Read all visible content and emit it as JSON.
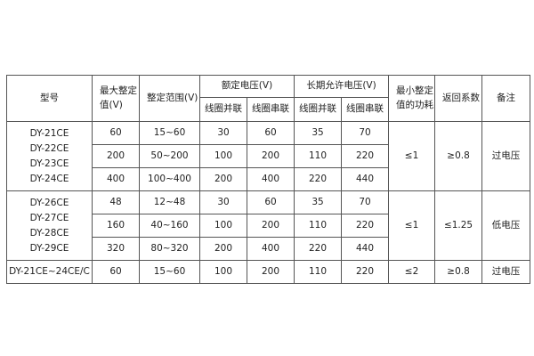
{
  "headers": {
    "model": "型号",
    "max_setting": "最大整定值(V)",
    "setting_range": "整定范围(V)",
    "rated_voltage": "额定电压(V)",
    "long_term_voltage": "长期允许电压(V)",
    "coil_parallel": "线圈并联",
    "coil_series": "线圈串联",
    "min_power": "最小整定值的功耗",
    "return_coef": "返回系数",
    "remark": "备注"
  },
  "groups": [
    {
      "models": [
        "DY-21CE",
        "DY-22CE",
        "DY-23CE",
        "DY-24CE"
      ],
      "rows": [
        [
          "60",
          "15~60",
          "30",
          "60",
          "35",
          "70"
        ],
        [
          "200",
          "50~200",
          "100",
          "200",
          "110",
          "220"
        ],
        [
          "400",
          "100~400",
          "200",
          "400",
          "220",
          "440"
        ]
      ],
      "power": "≤1",
      "return": "≥0.8",
      "remark": "过电压"
    },
    {
      "models": [
        "DY-26CE",
        "DY-27CE",
        "DY-28CE",
        "DY-29CE"
      ],
      "rows": [
        [
          "48",
          "12~48",
          "30",
          "60",
          "35",
          "70"
        ],
        [
          "160",
          "40~160",
          "100",
          "200",
          "110",
          "220"
        ],
        [
          "320",
          "80~320",
          "200",
          "400",
          "220",
          "440"
        ]
      ],
      "power": "≤1",
      "return": "≤1.25",
      "remark": "低电压"
    },
    {
      "models": [
        "DY-21CE~24CE/C"
      ],
      "rows": [
        [
          "60",
          "15~60",
          "100",
          "200",
          "110",
          "220"
        ]
      ],
      "power": "≤2",
      "return": "≥0.8",
      "remark": "过电压"
    }
  ]
}
